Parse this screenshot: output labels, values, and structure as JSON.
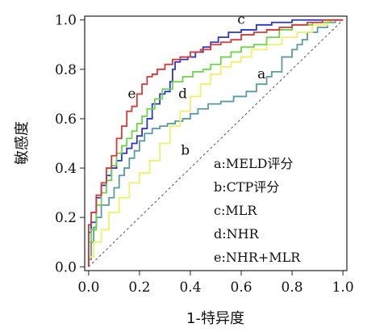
{
  "chart_data": {
    "type": "line",
    "title": "",
    "xlabel": "1-特异度",
    "ylabel": "敏感度",
    "xlim": [
      0,
      1
    ],
    "ylim": [
      0,
      1
    ],
    "x_ticks": [
      "0.0",
      "0.2",
      "0.4",
      "0.6",
      "0.8",
      "1.0"
    ],
    "y_ticks": [
      "0.0",
      "0.2",
      "0.4",
      "0.6",
      "0.8",
      "1.0"
    ],
    "grid": false,
    "legend_position": "bottom-right",
    "legend": [
      "a:MELD评分",
      "b:CTP评分",
      "c:MLR",
      "d:NHR",
      "e:NHR+MLR"
    ],
    "series": [
      {
        "name": "a",
        "color": "#5b9aa0",
        "points": [
          [
            0,
            0
          ],
          [
            0.01,
            0.03
          ],
          [
            0.02,
            0.1
          ],
          [
            0.03,
            0.16
          ],
          [
            0.05,
            0.2
          ],
          [
            0.08,
            0.25
          ],
          [
            0.1,
            0.28
          ],
          [
            0.12,
            0.32
          ],
          [
            0.14,
            0.37
          ],
          [
            0.16,
            0.4
          ],
          [
            0.18,
            0.44
          ],
          [
            0.2,
            0.47
          ],
          [
            0.22,
            0.51
          ],
          [
            0.25,
            0.54
          ],
          [
            0.28,
            0.56
          ],
          [
            0.31,
            0.57
          ],
          [
            0.34,
            0.58
          ],
          [
            0.37,
            0.59
          ],
          [
            0.4,
            0.6
          ],
          [
            0.43,
            0.62
          ],
          [
            0.47,
            0.64
          ],
          [
            0.52,
            0.66
          ],
          [
            0.57,
            0.67
          ],
          [
            0.62,
            0.69
          ],
          [
            0.66,
            0.71
          ],
          [
            0.7,
            0.74
          ],
          [
            0.72,
            0.77
          ],
          [
            0.76,
            0.79
          ],
          [
            0.8,
            0.85
          ],
          [
            0.82,
            0.88
          ],
          [
            0.84,
            0.9
          ],
          [
            0.86,
            0.92
          ],
          [
            0.9,
            0.95
          ],
          [
            0.94,
            0.97
          ],
          [
            0.97,
            0.99
          ],
          [
            1.0,
            1.0
          ]
        ]
      },
      {
        "name": "b",
        "color": "#f2ef6b",
        "points": [
          [
            0,
            0
          ],
          [
            0.02,
            0.04
          ],
          [
            0.05,
            0.1
          ],
          [
            0.08,
            0.15
          ],
          [
            0.12,
            0.22
          ],
          [
            0.16,
            0.28
          ],
          [
            0.2,
            0.34
          ],
          [
            0.24,
            0.38
          ],
          [
            0.28,
            0.43
          ],
          [
            0.32,
            0.5
          ],
          [
            0.36,
            0.57
          ],
          [
            0.4,
            0.63
          ],
          [
            0.44,
            0.69
          ],
          [
            0.48,
            0.74
          ],
          [
            0.52,
            0.78
          ],
          [
            0.56,
            0.81
          ],
          [
            0.6,
            0.83
          ],
          [
            0.64,
            0.85
          ],
          [
            0.7,
            0.88
          ],
          [
            0.76,
            0.9
          ],
          [
            0.82,
            0.93
          ],
          [
            0.88,
            0.95
          ],
          [
            0.94,
            0.98
          ],
          [
            1.0,
            1.0
          ]
        ]
      },
      {
        "name": "c",
        "color": "#2b36c9",
        "points": [
          [
            0,
            0
          ],
          [
            0.01,
            0.14
          ],
          [
            0.03,
            0.18
          ],
          [
            0.05,
            0.28
          ],
          [
            0.07,
            0.33
          ],
          [
            0.09,
            0.37
          ],
          [
            0.11,
            0.4
          ],
          [
            0.13,
            0.43
          ],
          [
            0.15,
            0.46
          ],
          [
            0.17,
            0.48
          ],
          [
            0.19,
            0.5
          ],
          [
            0.21,
            0.53
          ],
          [
            0.23,
            0.56
          ],
          [
            0.25,
            0.6
          ],
          [
            0.28,
            0.66
          ],
          [
            0.3,
            0.7
          ],
          [
            0.32,
            0.71
          ],
          [
            0.33,
            0.75
          ],
          [
            0.34,
            0.8
          ],
          [
            0.36,
            0.83
          ],
          [
            0.39,
            0.84
          ],
          [
            0.42,
            0.85
          ],
          [
            0.45,
            0.87
          ],
          [
            0.48,
            0.89
          ],
          [
            0.51,
            0.91
          ],
          [
            0.55,
            0.93
          ],
          [
            0.6,
            0.95
          ],
          [
            0.66,
            0.96
          ],
          [
            0.72,
            0.98
          ],
          [
            0.8,
            0.99
          ],
          [
            0.88,
            1.0
          ],
          [
            1.0,
            1.0
          ]
        ]
      },
      {
        "name": "d",
        "color": "#6ed34a",
        "points": [
          [
            0,
            0
          ],
          [
            0.01,
            0.1
          ],
          [
            0.03,
            0.15
          ],
          [
            0.05,
            0.25
          ],
          [
            0.07,
            0.3
          ],
          [
            0.09,
            0.35
          ],
          [
            0.11,
            0.41
          ],
          [
            0.13,
            0.46
          ],
          [
            0.15,
            0.49
          ],
          [
            0.17,
            0.52
          ],
          [
            0.19,
            0.55
          ],
          [
            0.21,
            0.58
          ],
          [
            0.23,
            0.61
          ],
          [
            0.26,
            0.64
          ],
          [
            0.29,
            0.68
          ],
          [
            0.33,
            0.72
          ],
          [
            0.37,
            0.75
          ],
          [
            0.41,
            0.77
          ],
          [
            0.45,
            0.79
          ],
          [
            0.48,
            0.8
          ],
          [
            0.52,
            0.82
          ],
          [
            0.56,
            0.85
          ],
          [
            0.6,
            0.87
          ],
          [
            0.65,
            0.89
          ],
          [
            0.7,
            0.9
          ],
          [
            0.75,
            0.93
          ],
          [
            0.8,
            0.96
          ],
          [
            0.88,
            0.98
          ],
          [
            0.95,
            0.99
          ],
          [
            1.0,
            1.0
          ]
        ]
      },
      {
        "name": "e",
        "color": "#d43a3a",
        "points": [
          [
            0,
            0
          ],
          [
            0.01,
            0.17
          ],
          [
            0.03,
            0.22
          ],
          [
            0.05,
            0.29
          ],
          [
            0.07,
            0.34
          ],
          [
            0.09,
            0.4
          ],
          [
            0.11,
            0.45
          ],
          [
            0.13,
            0.52
          ],
          [
            0.15,
            0.57
          ],
          [
            0.17,
            0.63
          ],
          [
            0.19,
            0.65
          ],
          [
            0.21,
            0.7
          ],
          [
            0.23,
            0.74
          ],
          [
            0.25,
            0.77
          ],
          [
            0.27,
            0.78
          ],
          [
            0.3,
            0.8
          ],
          [
            0.33,
            0.82
          ],
          [
            0.36,
            0.84
          ],
          [
            0.4,
            0.85
          ],
          [
            0.44,
            0.87
          ],
          [
            0.48,
            0.88
          ],
          [
            0.52,
            0.9
          ],
          [
            0.56,
            0.91
          ],
          [
            0.6,
            0.92
          ],
          [
            0.65,
            0.94
          ],
          [
            0.7,
            0.95
          ],
          [
            0.75,
            0.96
          ],
          [
            0.8,
            0.97
          ],
          [
            0.86,
            0.98
          ],
          [
            0.92,
            0.99
          ],
          [
            1.0,
            1.0
          ]
        ]
      }
    ],
    "reference_line": {
      "color": "#555555",
      "style": "dashed",
      "points": [
        [
          0,
          0
        ],
        [
          1,
          1
        ]
      ]
    },
    "curve_labels": [
      {
        "text": "a",
        "x": 0.68,
        "y": 0.78
      },
      {
        "text": "b",
        "x": 0.38,
        "y": 0.47
      },
      {
        "text": "c",
        "x": 0.6,
        "y": 1.0
      },
      {
        "text": "d",
        "x": 0.37,
        "y": 0.7
      },
      {
        "text": "e",
        "x": 0.17,
        "y": 0.7
      }
    ]
  }
}
